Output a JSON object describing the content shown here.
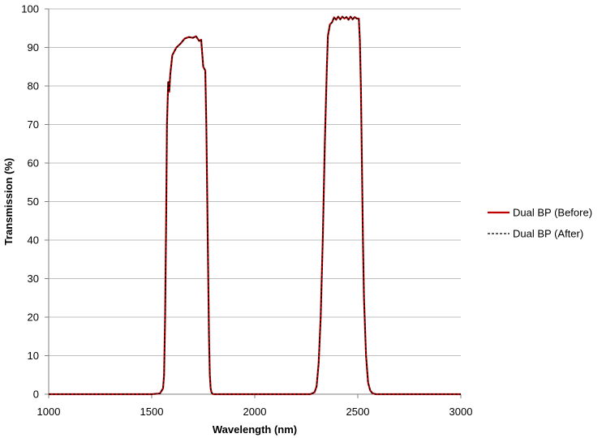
{
  "chart_data": {
    "type": "line",
    "title": "",
    "xlabel": "Wavelength (nm)",
    "ylabel": "Transmission (%)",
    "xlim": [
      1000,
      3000
    ],
    "ylim": [
      0,
      100
    ],
    "x_ticks": [
      1000,
      1500,
      2000,
      2500,
      3000
    ],
    "y_ticks": [
      0,
      10,
      20,
      30,
      40,
      50,
      60,
      70,
      80,
      90,
      100
    ],
    "grid": "horizontal",
    "legend_position": "right",
    "series": [
      {
        "name": "Dual BP (Before)",
        "color": "#c00000",
        "style": "solid",
        "x": [
          1000,
          1500,
          1540,
          1555,
          1560,
          1565,
          1570,
          1574,
          1580,
          1585,
          1590,
          1600,
          1620,
          1640,
          1660,
          1680,
          1700,
          1715,
          1730,
          1740,
          1750,
          1760,
          1765,
          1772,
          1778,
          1782,
          1786,
          1790,
          1795,
          1800,
          1810,
          1830,
          2000,
          2270,
          2290,
          2300,
          2310,
          2320,
          2330,
          2340,
          2350,
          2355,
          2365,
          2375,
          2385,
          2395,
          2405,
          2415,
          2425,
          2435,
          2445,
          2455,
          2465,
          2475,
          2485,
          2495,
          2505,
          2510,
          2515,
          2520,
          2525,
          2530,
          2540,
          2550,
          2560,
          2570,
          2580,
          2590,
          2610,
          3000
        ],
        "y": [
          0,
          0,
          0.2,
          1.5,
          5,
          20,
          45,
          70,
          81,
          78.5,
          83,
          88,
          90,
          91,
          92.3,
          92.7,
          92.5,
          92.9,
          91.7,
          92,
          85,
          84,
          70,
          40,
          15,
          5,
          1.5,
          0.5,
          0.1,
          0,
          0,
          0,
          0,
          0,
          0.5,
          2,
          8,
          20,
          40,
          65,
          85,
          93,
          96,
          96.5,
          97.8,
          97.2,
          98,
          97.3,
          98,
          97.5,
          97.9,
          97.2,
          98,
          97.3,
          97.9,
          97.5,
          97.5,
          92,
          80,
          60,
          40,
          25,
          10,
          3,
          1,
          0.3,
          0.1,
          0,
          0,
          0
        ]
      },
      {
        "name": "Dual BP (After)",
        "color": "#000000",
        "style": "dashed",
        "x": [
          1000,
          1500,
          1540,
          1555,
          1560,
          1565,
          1570,
          1574,
          1580,
          1585,
          1590,
          1600,
          1620,
          1640,
          1660,
          1680,
          1700,
          1715,
          1730,
          1740,
          1750,
          1760,
          1765,
          1772,
          1778,
          1782,
          1786,
          1790,
          1795,
          1800,
          1810,
          1830,
          2000,
          2270,
          2290,
          2300,
          2310,
          2320,
          2330,
          2340,
          2350,
          2355,
          2365,
          2375,
          2385,
          2395,
          2405,
          2415,
          2425,
          2435,
          2445,
          2455,
          2465,
          2475,
          2485,
          2495,
          2505,
          2510,
          2515,
          2520,
          2525,
          2530,
          2540,
          2550,
          2560,
          2570,
          2580,
          2590,
          2610,
          3000
        ],
        "y": [
          0,
          0,
          0.2,
          1.5,
          5,
          20,
          45,
          70,
          81,
          78.5,
          83,
          88,
          90,
          91,
          92.3,
          92.7,
          92.5,
          92.9,
          91.7,
          92,
          85,
          84,
          70,
          40,
          15,
          5,
          1.5,
          0.5,
          0.1,
          0,
          0,
          0,
          0,
          0,
          0.5,
          2,
          8,
          20,
          40,
          65,
          85,
          93,
          96,
          96.5,
          97.8,
          97.2,
          98,
          97.3,
          98,
          97.5,
          97.9,
          97.2,
          98,
          97.3,
          97.9,
          97.5,
          97.5,
          92,
          80,
          60,
          40,
          25,
          10,
          3,
          1,
          0.3,
          0.1,
          0,
          0,
          0
        ]
      }
    ]
  }
}
